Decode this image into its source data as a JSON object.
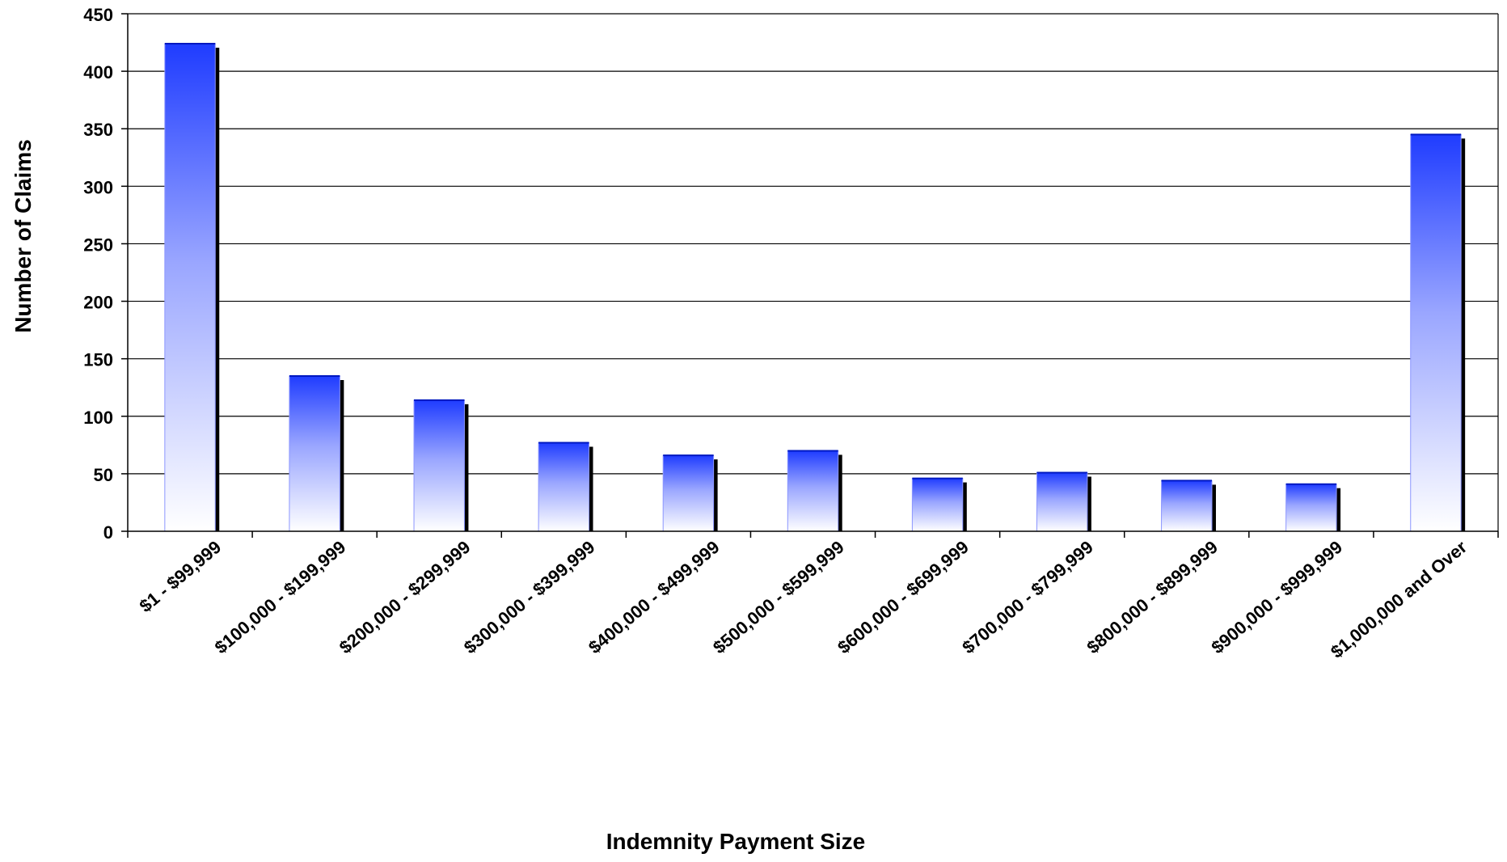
{
  "chart_data": {
    "type": "bar",
    "title": "",
    "xlabel": "Indemnity Payment Size",
    "ylabel": "Number of Claims",
    "ylim": [
      0,
      450
    ],
    "yticks": [
      0,
      50,
      100,
      150,
      200,
      250,
      300,
      350,
      400,
      450
    ],
    "grid": true,
    "legend": "none",
    "categories": [
      "$1 - $99,999",
      "$100,000 - $199,999",
      "$200,000 - $299,999",
      "$300,000 - $399,999",
      "$400,000 - $499,999",
      "$500,000 - $599,999",
      "$600,000 - $699,999",
      "$700,000 - $799,999",
      "$800,000 - $899,999",
      "$900,000 - $999,999",
      "$1,000,000 and Over"
    ],
    "values": [
      424,
      135,
      114,
      77,
      66,
      70,
      46,
      51,
      44,
      41,
      345
    ],
    "colors": {
      "bar_top": "#1f3cff",
      "bar_bottom": "#ffffff",
      "bar_shadow": "#000000",
      "gridline": "#000000",
      "axis": "#000000"
    }
  }
}
